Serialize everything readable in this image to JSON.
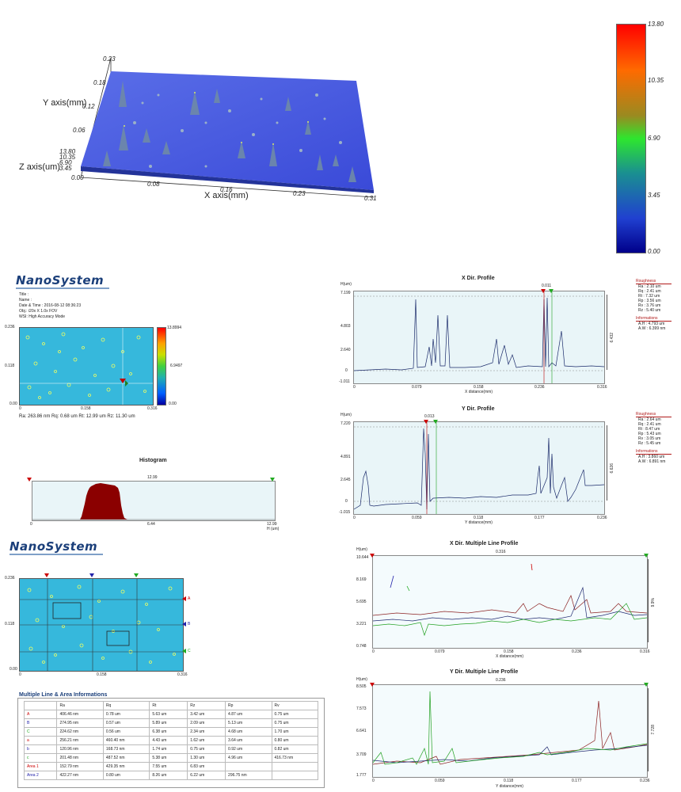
{
  "surface3d": {
    "y_axis_label": "Y axis(mm)",
    "x_axis_label": "X axis(mm)",
    "z_axis_label": "Z axis(um)",
    "y_ticks": [
      "0.23",
      "0.18",
      "0.12",
      "0.06",
      "0.00"
    ],
    "x_ticks": [
      "0.00",
      "0.08",
      "0.16",
      "0.23",
      "0.31"
    ],
    "z_ticks": [
      "13.80",
      "10.35",
      "6.90",
      "3.45",
      "0.00"
    ]
  },
  "colorbar": {
    "labels": [
      "13.80",
      "10.35",
      "6.90",
      "3.45",
      "0.00"
    ]
  },
  "report1": {
    "logo": "NanoSystem",
    "meta": [
      "Title :",
      "Name :",
      "Date & Time : 2016-08-12 08:36:23",
      "Obj.: i20x X 1.0x FOV",
      "WSI: High Accuracy Mode"
    ],
    "map_y_top": "0.236",
    "map_y_mid": "0.118",
    "map_y_bot": "0.00",
    "map_x_ticks": [
      "0",
      "0.158",
      "0.316"
    ],
    "map_cb_top": "13.8994",
    "map_cb_mid": "6.9497",
    "map_cb_bot": "0.00",
    "stats": "Ra: 263.86 nm   Rq: 0.68 um   Rt: 12.99 um   Rz: 11.30 um",
    "histogram_title": "Histogram",
    "histogram_top_label": "12.99",
    "histogram_x_ticks": [
      "0",
      "6.44",
      "12.99"
    ],
    "histogram_x_unit": "H (um)"
  },
  "xprofile": {
    "title": "X Dir. Profile",
    "y_unit": "H(um)",
    "cursor_label": "0.011",
    "y_ticks": [
      "7.199",
      "4.803",
      "2.640",
      "0",
      "-1.011"
    ],
    "x_ticks": [
      "0",
      "0.079",
      "0.158",
      "0.236",
      "0.316"
    ],
    "x_label": "X distance(mm)",
    "side_value": "6.432",
    "roughness_title": "Roughness",
    "roughness": [
      "Ra : 2.10 um",
      "Rq : 2.41 um",
      "Rt : 7.32 um",
      "Rp : 3.56 um",
      "Rv : 3.76 um",
      "Rz : 5.40 um"
    ],
    "info_title": "Informations",
    "info": [
      "A.H : 4.793 um",
      "A.W : 6.399 nm"
    ]
  },
  "yprofile": {
    "title": "Y Dir. Profile",
    "y_unit": "H(um)",
    "cursor_label": "0.013",
    "y_ticks": [
      "7.220",
      "4.891",
      "2.645",
      "0",
      "-1.015"
    ],
    "x_ticks": [
      "0",
      "0.059",
      "0.118",
      "0.177",
      "0.236"
    ],
    "x_label": "Y distance(mm)",
    "side_value": "6.626",
    "roughness_title": "Roughness",
    "roughness": [
      "Ra : 2.64 um",
      "Rq : 2.41 um",
      "Rt : 8.47 um",
      "Rp : 5.43 um",
      "Rv : 3.05 um",
      "Rz : 5.45 um"
    ],
    "info_title": "Informations",
    "info": [
      "A.H : 3.860 um",
      "A.W : 6.891 nm"
    ]
  },
  "report2": {
    "logo": "NanoSystem",
    "map_y_top": "0.236",
    "map_y_mid": "0.118",
    "map_y_bot": "0.00",
    "map_x_ticks": [
      "0",
      "0.158",
      "0.316"
    ],
    "markers": [
      "A",
      "B",
      "C"
    ],
    "table_title": "Multiple Line & Area Informations",
    "table_headers": [
      "",
      "Ra",
      "Rq",
      "Rt",
      "Rz",
      "Rp",
      "Rv"
    ],
    "table_rows": [
      [
        "A",
        "406.46 nm",
        "0.78 um",
        "5.63 um",
        "3.42 um",
        "4.87 um",
        "0.75 um"
      ],
      [
        "B",
        "274.95 nm",
        "0.57 um",
        "5.89 um",
        "2.09 um",
        "5.13 um",
        "0.75 um"
      ],
      [
        "C",
        "224.62 nm",
        "0.56 um",
        "6.38 um",
        "2.34 um",
        "4.68 um",
        "1.70 um"
      ],
      [
        "a",
        "256.21 nm",
        "460.40 nm",
        "4.43 um",
        "1.62 um",
        "3.64 um",
        "0.80 um"
      ],
      [
        "b",
        "120.96 nm",
        "168.73 nm",
        "1.74 um",
        "0.75 um",
        "0.92 um",
        "0.82 um"
      ],
      [
        "c",
        "201.48 nm",
        "487.52 nm",
        "5.38 um",
        "1.30 um",
        "4.96 um",
        "416.73 nm"
      ],
      [
        "Area 1",
        "152.79 nm",
        "429.35 nm",
        "7.55 um",
        "6.83 um",
        "",
        ""
      ],
      [
        "Area 2",
        "422.27 nm",
        "0.80 um",
        "8.26 um",
        "6.22 um",
        "296.75 nm",
        ""
      ]
    ]
  },
  "xmulti": {
    "title": "X Dir. Multiple Line Profile",
    "y_unit": "H(um)",
    "top_label": "0.316",
    "y_ticks": [
      "10.644",
      "8.169",
      "5.695",
      "3.221",
      "0.748"
    ],
    "x_ticks": [
      "0",
      "0.079",
      "0.158",
      "0.236",
      "0.316"
    ],
    "x_label": "X distance(mm)",
    "side_value": "9.9%"
  },
  "ymulti": {
    "title": "Y Dir. Multiple Line Profile",
    "y_unit": "H(um)",
    "top_label": "0.236",
    "y_ticks": [
      "8.505",
      "7.573",
      "6.641",
      "3.709",
      "1.777"
    ],
    "x_ticks": [
      "0",
      "0.059",
      "0.118",
      "0.177",
      "0.236"
    ],
    "x_label": "Y distance(mm)",
    "side_value": "7.728"
  }
}
